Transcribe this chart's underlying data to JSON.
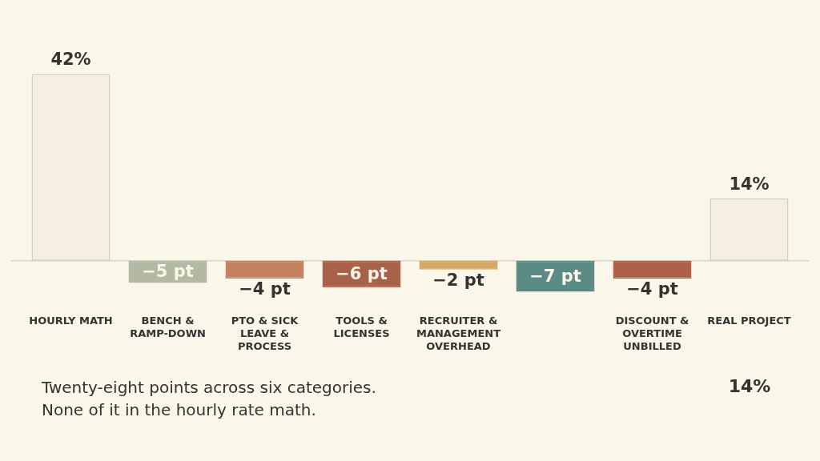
{
  "chart_data": {
    "type": "bar",
    "categories": [
      "HOURLY MATH",
      "BENCH & RAMP-DOWN",
      "PTO & SICK LEAVE & PROCESS",
      "TOOLS & LICENSES",
      "RECRUITER & MANAGEMENT OVERHEAD",
      null,
      "DISCOUNT & OVERTIME UNBILLED",
      "REAL PROJECT"
    ],
    "values": [
      42,
      -5,
      -4,
      -6,
      -2,
      -7,
      -4,
      14
    ],
    "colors": [
      "#f4efe1",
      "#b3b9a3",
      "#c4815f",
      "#a8624a",
      "#d4a765",
      "#5a8b85",
      "#ad6148",
      "#f4efe1"
    ],
    "value_labels": [
      "42%",
      "−5 pt",
      "−4 pt",
      "−6 pt",
      "−2 pt",
      "−7 pt",
      "−4 pt",
      "14%"
    ],
    "tick_labels": "x",
    "annotations": [
      "Twenty-eight points across six categories.",
      "None of it in the hourly rate math.",
      "14%"
    ]
  }
}
